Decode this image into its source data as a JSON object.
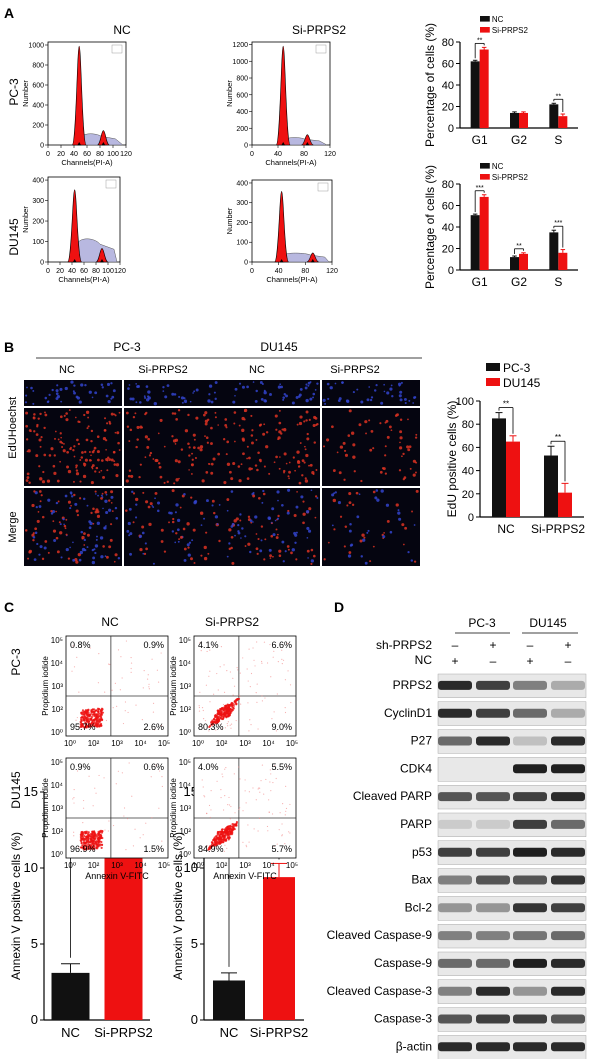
{
  "panel_letters": {
    "a": "A",
    "b": "B",
    "c": "C",
    "d": "D"
  },
  "cell_lines": {
    "pc3": "PC-3",
    "du145": "DU145"
  },
  "conditions": {
    "nc": "NC",
    "si": "Si-PRPS2"
  },
  "histogram": {
    "ylabel": "Number",
    "xlabel": "Channels(PI-A)",
    "pc3_nc_yticks": [
      "0",
      "200",
      "400",
      "600",
      "800",
      "1000"
    ],
    "pc3_si_yticks": [
      "0",
      "200",
      "400",
      "600",
      "800",
      "1000",
      "1200"
    ],
    "du_nc_yticks": [
      "0",
      "100",
      "200",
      "300",
      "400"
    ],
    "du_si_yticks": [
      "0",
      "100",
      "200",
      "300",
      "400"
    ],
    "xticks_full": [
      "0",
      "30",
      "60",
      "90",
      "120"
    ],
    "xticks_pc3_nc": [
      "0",
      "20",
      "40",
      "60",
      "80",
      "100",
      "120"
    ],
    "xticks_du_nc": [
      "0",
      "20",
      "40",
      "60",
      "80",
      "100",
      "120"
    ],
    "xticks_mid": [
      "0",
      "40",
      "80",
      "120"
    ]
  },
  "edu_images": {
    "rows": [
      "Hoechst",
      "EdU",
      "Merge"
    ]
  },
  "flow": {
    "ylabel": "Propidium iodide",
    "xlabel": "Annexin V-FITC",
    "ticks": [
      "10⁰",
      "10²",
      "10³",
      "10⁴",
      "10⁵"
    ],
    "quadrants": {
      "pc3_nc": [
        "0.8%",
        "0.9%",
        "95.7%",
        "2.6%"
      ],
      "pc3_si": [
        "4.1%",
        "6.6%",
        "80.3%",
        "9.0%"
      ],
      "du_nc": [
        "0.9%",
        "0.6%",
        "96.9%",
        "1.5%"
      ],
      "du_si": [
        "4.0%",
        "5.5%",
        "84.9%",
        "5.7%"
      ]
    }
  },
  "western": {
    "sh_label": "sh-PRPS2",
    "nc_label": "NC",
    "signs_sh": [
      "–",
      "+",
      "–",
      "+"
    ],
    "signs_nc": [
      "+",
      "–",
      "+",
      "–"
    ],
    "proteins": [
      "PRPS2",
      "CyclinD1",
      "P27",
      "CDK4",
      "Cleaved PARP",
      "PARP",
      "p53",
      "Bax",
      "Bcl-2",
      "Cleaved Caspase-9",
      "Caspase-9",
      "Cleaved Caspase-3",
      "Caspase-3",
      "β-actin"
    ]
  },
  "colors": {
    "black": "#111111",
    "red": "#ee1111",
    "blue": "#3344cc"
  },
  "chart_data": [
    {
      "type": "bar",
      "categories": [
        "G1",
        "G2",
        "S"
      ],
      "series": [
        {
          "name": "NC",
          "values": [
            62,
            14,
            22
          ]
        },
        {
          "name": "Si-PRPS2",
          "values": [
            73,
            14,
            11
          ]
        }
      ],
      "errors": [
        [
          1,
          1,
          1
        ],
        [
          2,
          1,
          2
        ]
      ],
      "ylabel": "Percentage of cells (%)",
      "ylim": [
        0,
        80
      ],
      "yticks": [
        "0",
        "20",
        "40",
        "60",
        "80"
      ],
      "significance": [
        "**",
        "",
        "**"
      ],
      "legend": "top-left"
    },
    {
      "type": "bar",
      "categories": [
        "G1",
        "G2",
        "S"
      ],
      "series": [
        {
          "name": "NC",
          "values": [
            51,
            12,
            35
          ]
        },
        {
          "name": "Si-PRPS2",
          "values": [
            68,
            15,
            16
          ]
        }
      ],
      "errors": [
        [
          1,
          1,
          2
        ],
        [
          2,
          1,
          3
        ]
      ],
      "ylabel": "Percentage of cells (%)",
      "ylim": [
        0,
        80
      ],
      "yticks": [
        "0",
        "20",
        "40",
        "60",
        "80"
      ],
      "significance": [
        "***",
        "**",
        "***"
      ],
      "legend": "top-left"
    },
    {
      "type": "bar",
      "categories": [
        "NC",
        "Si-PRPS2"
      ],
      "series": [
        {
          "name": "PC-3",
          "values": [
            85,
            53
          ]
        },
        {
          "name": "DU145",
          "values": [
            65,
            21
          ]
        }
      ],
      "errors": [
        [
          5,
          8
        ],
        [
          5,
          8
        ]
      ],
      "ylabel": "EdU positive cells (%)",
      "ylim": [
        0,
        100
      ],
      "yticks": [
        "0",
        "20",
        "40",
        "60",
        "80",
        "100"
      ],
      "significance": [
        "**",
        "**"
      ],
      "legend": "top-left"
    },
    {
      "type": "bar",
      "categories": [
        "NC",
        "Si-PRPS2"
      ],
      "series": [
        {
          "values": [
            3.1,
            11.8
          ]
        }
      ],
      "errors": [
        0.6,
        2.1
      ],
      "ylabel": "Annexin V positive cells (%)",
      "ylim": [
        0,
        15
      ],
      "yticks": [
        "0",
        "5",
        "10",
        "15"
      ],
      "significance": [
        "*"
      ]
    },
    {
      "type": "bar",
      "categories": [
        "NC",
        "Si-PRPS2"
      ],
      "series": [
        {
          "values": [
            2.6,
            9.4
          ]
        }
      ],
      "errors": [
        0.5,
        0.9
      ],
      "ylabel": "Annexin V positive cells (%)",
      "ylim": [
        0,
        15
      ],
      "yticks": [
        "0",
        "5",
        "10",
        "15"
      ],
      "significance": [
        "**"
      ]
    }
  ]
}
